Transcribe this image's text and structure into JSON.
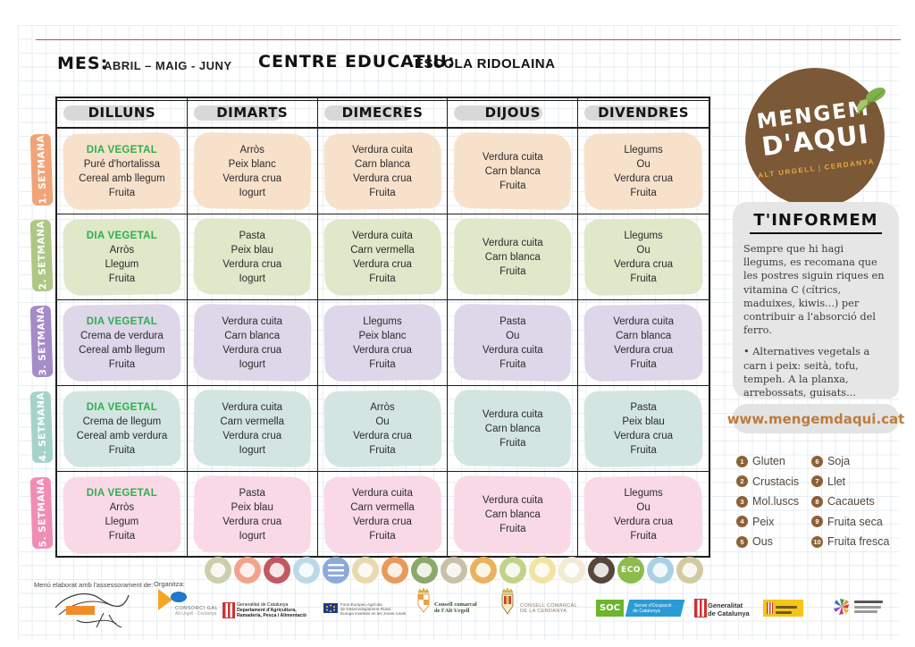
{
  "header": {
    "mes_label": "MES:",
    "mes_value": "ABRIL – MAIG - JUNY",
    "centre_label": "CENTRE EDUCATIU:",
    "centre_value": "ESCOLA RIDOLAINA"
  },
  "table": {
    "day_headers": [
      "DILLUNS",
      "DIMARTS",
      "DIMECRES",
      "DIJOUS",
      "DIVENDRES"
    ],
    "dia_vegetal_color": "#2eae4e",
    "weeks": [
      {
        "label": "1. SETMANA",
        "tab_color": "#f0a478",
        "cell_color": "#f8e1cb",
        "days": [
          {
            "tag": "DIA VEGETAL",
            "lines": [
              "Puré d'hortalissa",
              "Cereal amb llegum",
              "Fruita"
            ]
          },
          {
            "lines": [
              "Arròs",
              "Peix blanc",
              "Verdura crua",
              "Iogurt"
            ]
          },
          {
            "lines": [
              "Verdura cuita",
              "Carn blanca",
              "Verdura crua",
              "Fruita"
            ]
          },
          {
            "lines": [
              "Verdura cuita",
              "Carn blanca",
              "Fruita"
            ]
          },
          {
            "lines": [
              "Llegums",
              "Ou",
              "Verdura crua",
              "Fruita"
            ]
          }
        ]
      },
      {
        "label": "2. SETMANA",
        "tab_color": "#aec785",
        "cell_color": "#dfe8c9",
        "days": [
          {
            "tag": "DIA VEGETAL",
            "lines": [
              "Arròs",
              "Llegum",
              "Fruita"
            ]
          },
          {
            "lines": [
              "Pasta",
              "Peix blau",
              "Verdura crua",
              "Iogurt"
            ]
          },
          {
            "lines": [
              "Verdura cuita",
              "Carn vermella",
              "Verdura crua",
              "Fruita"
            ]
          },
          {
            "lines": [
              "Verdura cuita",
              "Carn blanca",
              "Fruita"
            ]
          },
          {
            "lines": [
              "Llegums",
              "Ou",
              "Verdura crua",
              "Fruita"
            ]
          }
        ]
      },
      {
        "label": "3. SETMANA",
        "tab_color": "#a58bc8",
        "cell_color": "#ded6e9",
        "days": [
          {
            "tag": "DIA VEGETAL",
            "lines": [
              "Crema de verdura",
              "Cereal amb llegum",
              "Fruita"
            ]
          },
          {
            "lines": [
              "Verdura cuita",
              "Carn blanca",
              "Verdura crua",
              "Iogurt"
            ]
          },
          {
            "lines": [
              "Llegums",
              "Peix blanc",
              "Verdura crua",
              "Fruita"
            ]
          },
          {
            "lines": [
              "Pasta",
              "Ou",
              "Verdura cuita",
              "Fruita"
            ]
          },
          {
            "lines": [
              "Verdura cuita",
              "Carn blanca",
              "Verdura crua",
              "Fruita"
            ]
          }
        ]
      },
      {
        "label": "4. SETMANA",
        "tab_color": "#a5d3cc",
        "cell_color": "#d3e5e1",
        "days": [
          {
            "tag": "DIA VEGETAL",
            "lines": [
              "Crema de llegum",
              "Cereal amb verdura",
              "Fruita"
            ]
          },
          {
            "lines": [
              "Verdura cuita",
              "Carn vermella",
              "Verdura crua",
              "Iogurt"
            ]
          },
          {
            "lines": [
              "Arròs",
              "Ou",
              "Verdura crua",
              "Fruita"
            ]
          },
          {
            "lines": [
              "Verdura cuita",
              "Carn blanca",
              "Fruita"
            ]
          },
          {
            "lines": [
              "Pasta",
              "Peix blau",
              "Verdura crua",
              "Fruita"
            ]
          }
        ]
      },
      {
        "label": "5. SETMANA",
        "tab_color": "#f18cb5",
        "cell_color": "#f9d9e6",
        "days": [
          {
            "tag": "DIA VEGETAL",
            "lines": [
              "Arròs",
              "Llegum",
              "Fruita"
            ]
          },
          {
            "lines": [
              "Pasta",
              "Peix blau",
              "Verdura crua",
              "Iogurt"
            ]
          },
          {
            "lines": [
              "Verdura cuita",
              "Carn vermella",
              "Verdura crua",
              "Fruita"
            ]
          },
          {
            "lines": [
              "Verdura cuita",
              "Carn blanca",
              "Fruita"
            ]
          },
          {
            "lines": [
              "Llegums",
              "Ou",
              "Verdura crua",
              "Fruita"
            ]
          }
        ]
      }
    ]
  },
  "logo": {
    "title_line1": "MENGEM",
    "title_line2": "D'AQUI",
    "subtitle_left": "ALT URGELL",
    "subtitle_sep": "|",
    "subtitle_right": "CERDANYA",
    "circle_color": "#7b5836",
    "subtitle_color": "#eda743"
  },
  "info_box": {
    "title": "T'INFORMEM",
    "paragraph_1": "Sempre que hi hagi llegums, es recomana que les postres siguin riques en vitamina C (cítrics, maduixes, kiwis...) per contribuir a l'absorció del ferro.",
    "paragraph_2": "• Alternatives vegetals a carn i peix: seità, tofu, tempeh. A la planxa, arrebossats, guisats..."
  },
  "website": "www.mengemdaqui.cat",
  "allergens": {
    "badge_color": "#8d6136",
    "left": [
      {
        "num": "1",
        "label": "Gluten"
      },
      {
        "num": "2",
        "label": "Crustacis"
      },
      {
        "num": "3",
        "label": "Mol.luscs"
      },
      {
        "num": "4",
        "label": "Peix"
      },
      {
        "num": "5",
        "label": "Ous"
      }
    ],
    "right": [
      {
        "num": "6",
        "label": "Soja"
      },
      {
        "num": "7",
        "label": "Llet"
      },
      {
        "num": "8",
        "label": "Cacauets"
      },
      {
        "num": "9",
        "label": "Fruita seca"
      },
      {
        "num": "10",
        "label": "Fruita fresca"
      }
    ]
  },
  "food_icons": [
    {
      "name": "vegetables-icon",
      "color": "#ccceac"
    },
    {
      "name": "chicken-icon",
      "color": "#f2a38c"
    },
    {
      "name": "red-meat-icon",
      "color": "#c25862"
    },
    {
      "name": "fish-icon",
      "color": "#bcd9e9"
    },
    {
      "name": "pasta-stripes-icon",
      "color": "#8caad9",
      "style": "stripes"
    },
    {
      "name": "legume-pasta-icon",
      "color": "#ead9ae"
    },
    {
      "name": "corn-icon",
      "color": "#e9995c"
    },
    {
      "name": "vegetable-icon",
      "color": "#8aa96a"
    },
    {
      "name": "beans-icon",
      "color": "#c9c1a7"
    },
    {
      "name": "poultry-icon",
      "color": "#eab25c"
    },
    {
      "name": "apple-icon",
      "color": "#c2d28a"
    },
    {
      "name": "nuts-icon",
      "color": "#f2e3a2"
    },
    {
      "name": "meat-cut-icon",
      "color": "#f2ead4"
    },
    {
      "name": "leaf-icon",
      "color": "#57463a"
    },
    {
      "name": "eco-icon",
      "color": "#8cbc4c",
      "text": "ECO"
    },
    {
      "name": "milk-icon",
      "color": "#aad1e2"
    },
    {
      "name": "cook-icon",
      "color": "#d2caa2"
    }
  ],
  "footer": {
    "assessorament_label": "Menú elaborat amb l'assessorament de:",
    "organitza_label": "Organitza:",
    "consorci": {
      "line1": "CONSORCI GAL",
      "line2": "Alt Urgell - Cerdanya"
    },
    "dept_agricultura": {
      "line1": "Generalitat de Catalunya",
      "line2": "Departament d'Agricultura,",
      "line3": "Ramaderia, Pesca i Alimentació"
    },
    "feader": {
      "line1": "Fons Europeu Agrícola",
      "line2": "de Desenvolupament Rural:",
      "line3": "Europa inverteix en les zones rurals"
    },
    "alt_urgell": {
      "line1": "Consell comarcal",
      "line2": "de l'Alt Urgell"
    },
    "cerdanya": {
      "line1": "CONSELL COMARCAL",
      "line2": "DE LA CERDANYA"
    },
    "soc": {
      "abbr": "SOC",
      "line1": "Servei d'Ocupació",
      "line2": "de Catalunya"
    },
    "generalitat": {
      "line1": "Generalitat",
      "line2": "de Catalunya"
    }
  }
}
